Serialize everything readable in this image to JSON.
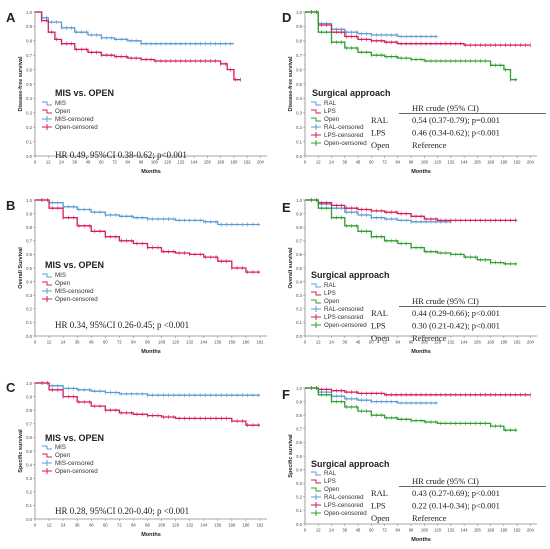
{
  "colors": {
    "MIS": "#5b9bd5",
    "Open": "#d81b5e",
    "RAL": "#5b9bd5",
    "LPS": "#d81b5e",
    "OpenGreen": "#2ca02c",
    "axis": "#888888",
    "text": "#222222"
  },
  "chart_data": [
    {
      "type": "line",
      "panel_label": "A",
      "title": "MIS vs. OPEN",
      "ylabel": "Disease-free survival",
      "xlabel": "Months",
      "xticks": [
        0,
        12,
        24,
        36,
        48,
        60,
        72,
        84,
        96,
        108,
        120,
        132,
        144,
        156,
        168,
        180,
        192,
        204
      ],
      "yticks": [
        "0.0",
        "0.1",
        "0.2",
        "0.3",
        "0.4",
        "0.5",
        "0.6",
        "0.7",
        "0.8",
        "0.9",
        "1.0"
      ],
      "xlim": [
        0,
        210
      ],
      "ylim": [
        0,
        1.0
      ],
      "legend": [
        "MIS",
        "Open",
        "MIS-censored",
        "Open-censored"
      ],
      "annotation": "HR 0.49, 95%CI 0.38-0.62; p<0.001",
      "series": [
        {
          "name": "MIS",
          "color_key": "MIS",
          "x": [
            0,
            6,
            12,
            24,
            36,
            48,
            60,
            72,
            84,
            96,
            120,
            150,
            180
          ],
          "y": [
            1.0,
            0.96,
            0.93,
            0.89,
            0.86,
            0.84,
            0.82,
            0.81,
            0.8,
            0.78,
            0.78,
            0.78,
            0.78
          ]
        },
        {
          "name": "Open",
          "color_key": "Open",
          "x": [
            0,
            6,
            12,
            18,
            24,
            36,
            48,
            60,
            72,
            84,
            96,
            108,
            120,
            132,
            144,
            156,
            168,
            174,
            180,
            186
          ],
          "y": [
            1.0,
            0.94,
            0.86,
            0.81,
            0.78,
            0.74,
            0.72,
            0.7,
            0.69,
            0.68,
            0.67,
            0.66,
            0.66,
            0.66,
            0.66,
            0.66,
            0.64,
            0.6,
            0.53,
            0.53
          ]
        }
      ]
    },
    {
      "type": "line",
      "panel_label": "B",
      "title": "MIS vs. OPEN",
      "ylabel": "Overall Survival",
      "xlabel": "Months",
      "xticks": [
        0,
        12,
        24,
        36,
        48,
        60,
        72,
        84,
        96,
        108,
        120,
        132,
        144,
        156,
        168,
        180,
        192
      ],
      "yticks": [
        "0.0",
        "0.1",
        "0.2",
        "0.3",
        "0.4",
        "0.5",
        "0.6",
        "0.7",
        "0.8",
        "0.9",
        "1.0"
      ],
      "xlim": [
        0,
        198
      ],
      "ylim": [
        0,
        1.0
      ],
      "legend": [
        "MIS",
        "Open",
        "MIS-censored",
        "Open-censored"
      ],
      "annotation": "HR 0.34, 95%CI 0.26-0.45; p <0.001",
      "series": [
        {
          "name": "MIS",
          "color_key": "MIS",
          "x": [
            0,
            12,
            24,
            36,
            48,
            60,
            72,
            84,
            96,
            108,
            120,
            132,
            144,
            156,
            168,
            180,
            192
          ],
          "y": [
            1.0,
            0.98,
            0.95,
            0.93,
            0.91,
            0.89,
            0.88,
            0.87,
            0.86,
            0.86,
            0.85,
            0.85,
            0.84,
            0.82,
            0.82,
            0.82,
            0.82
          ]
        },
        {
          "name": "Open",
          "color_key": "Open",
          "x": [
            0,
            12,
            24,
            36,
            48,
            60,
            72,
            84,
            96,
            108,
            120,
            132,
            144,
            156,
            168,
            180,
            192
          ],
          "y": [
            1.0,
            0.94,
            0.87,
            0.81,
            0.77,
            0.73,
            0.7,
            0.68,
            0.65,
            0.62,
            0.61,
            0.6,
            0.58,
            0.55,
            0.5,
            0.47,
            0.47
          ]
        }
      ]
    },
    {
      "type": "line",
      "panel_label": "C",
      "title": "MIS vs. OPEN",
      "ylabel": "Specific survival",
      "xlabel": "Months",
      "xticks": [
        0,
        12,
        24,
        36,
        48,
        60,
        72,
        84,
        96,
        108,
        120,
        132,
        144,
        156,
        168,
        180,
        192
      ],
      "yticks": [
        "0.0",
        "0.1",
        "0.2",
        "0.3",
        "0.4",
        "0.5",
        "0.6",
        "0.7",
        "0.8",
        "0.9",
        "1.0"
      ],
      "xlim": [
        0,
        198
      ],
      "ylim": [
        0,
        1.0
      ],
      "legend": [
        "MIS",
        "Open",
        "MIS-censored",
        "Open-censored"
      ],
      "annotation": "HR 0.28, 95%CI 0.20-0.40; p <0.001",
      "series": [
        {
          "name": "MIS",
          "color_key": "MIS",
          "x": [
            0,
            12,
            24,
            36,
            48,
            60,
            72,
            84,
            96,
            120,
            150,
            192
          ],
          "y": [
            1.0,
            0.98,
            0.96,
            0.95,
            0.94,
            0.93,
            0.92,
            0.92,
            0.91,
            0.91,
            0.91,
            0.91
          ]
        },
        {
          "name": "Open",
          "color_key": "Open",
          "x": [
            0,
            12,
            24,
            36,
            48,
            60,
            72,
            84,
            96,
            108,
            120,
            132,
            144,
            156,
            168,
            180,
            192
          ],
          "y": [
            1.0,
            0.95,
            0.9,
            0.86,
            0.83,
            0.8,
            0.78,
            0.77,
            0.76,
            0.75,
            0.74,
            0.74,
            0.74,
            0.74,
            0.72,
            0.69,
            0.69
          ]
        }
      ]
    },
    {
      "type": "line",
      "panel_label": "D",
      "title": "Surgical approach",
      "ylabel": "Disease-free survival",
      "xlabel": "Months",
      "xticks": [
        0,
        12,
        24,
        36,
        48,
        60,
        72,
        84,
        96,
        108,
        120,
        132,
        144,
        156,
        168,
        180,
        192,
        204
      ],
      "yticks": [
        "0.0",
        "0.1",
        "0.2",
        "0.3",
        "0.4",
        "0.5",
        "0.6",
        "0.7",
        "0.8",
        "0.9",
        "1.0"
      ],
      "xlim": [
        0,
        210
      ],
      "ylim": [
        0,
        1.0
      ],
      "legend": [
        "RAL",
        "LPS",
        "Open",
        "RAL-censored",
        "LPS-censored",
        "Open-censored"
      ],
      "hr_table": {
        "header": "HR crude (95% CI)",
        "rows": [
          {
            "label": "RAL",
            "value": "0.54 (0.37-0.79); p=0.001"
          },
          {
            "label": "LPS",
            "value": "0.46 (0.34-0.62); p<0.001"
          },
          {
            "label": "Open",
            "value": "Reference"
          }
        ]
      },
      "series": [
        {
          "name": "RAL",
          "color_key": "RAL",
          "x": [
            0,
            12,
            24,
            36,
            48,
            60,
            72,
            84,
            96,
            108,
            120
          ],
          "y": [
            1.0,
            0.92,
            0.88,
            0.86,
            0.85,
            0.84,
            0.84,
            0.83,
            0.83,
            0.83,
            0.83
          ]
        },
        {
          "name": "LPS",
          "color_key": "LPS",
          "x": [
            0,
            12,
            24,
            36,
            48,
            60,
            72,
            84,
            96,
            108,
            120,
            144,
            168,
            192,
            204
          ],
          "y": [
            1.0,
            0.91,
            0.86,
            0.83,
            0.81,
            0.8,
            0.79,
            0.78,
            0.78,
            0.78,
            0.78,
            0.77,
            0.77,
            0.77,
            0.77
          ]
        },
        {
          "name": "Open",
          "color_key": "OpenGreen",
          "x": [
            0,
            12,
            24,
            36,
            48,
            60,
            72,
            84,
            96,
            108,
            120,
            132,
            144,
            156,
            168,
            180,
            186,
            192
          ],
          "y": [
            1.0,
            0.86,
            0.79,
            0.75,
            0.72,
            0.7,
            0.69,
            0.68,
            0.67,
            0.66,
            0.66,
            0.66,
            0.66,
            0.66,
            0.63,
            0.6,
            0.53,
            0.53
          ]
        }
      ]
    },
    {
      "type": "line",
      "panel_label": "E",
      "title": "Surgical approach",
      "ylabel": "Overall survival",
      "xlabel": "Months",
      "xticks": [
        0,
        12,
        24,
        36,
        48,
        60,
        72,
        84,
        96,
        108,
        120,
        132,
        144,
        156,
        168,
        180,
        192,
        204
      ],
      "yticks": [
        "0.0",
        "0.1",
        "0.2",
        "0.3",
        "0.4",
        "0.5",
        "0.6",
        "0.7",
        "0.8",
        "0.9",
        "1.0"
      ],
      "xlim": [
        0,
        210
      ],
      "ylim": [
        0,
        1.0
      ],
      "legend": [
        "RAL",
        "LPS",
        "Open",
        "RAL-censored",
        "LPS-censored",
        "Open-censored"
      ],
      "hr_table": {
        "header": "HR crude (95% CI)",
        "rows": [
          {
            "label": "RAL",
            "value": "0.44 (0.29-0.66); p<0.001"
          },
          {
            "label": "LPS",
            "value": "0.30 (0.21-0.42); p<0.001"
          },
          {
            "label": "Open",
            "value": "Reference"
          }
        ]
      },
      "series": [
        {
          "name": "RAL",
          "color_key": "RAL",
          "x": [
            0,
            12,
            24,
            36,
            48,
            60,
            72,
            84,
            96,
            108,
            120,
            132
          ],
          "y": [
            1.0,
            0.97,
            0.94,
            0.91,
            0.89,
            0.87,
            0.86,
            0.85,
            0.84,
            0.84,
            0.84,
            0.84
          ]
        },
        {
          "name": "LPS",
          "color_key": "LPS",
          "x": [
            0,
            12,
            24,
            36,
            48,
            60,
            72,
            84,
            96,
            108,
            120,
            144,
            168,
            192
          ],
          "y": [
            1.0,
            0.98,
            0.96,
            0.94,
            0.93,
            0.92,
            0.91,
            0.9,
            0.88,
            0.86,
            0.85,
            0.85,
            0.85,
            0.85
          ]
        },
        {
          "name": "Open",
          "color_key": "OpenGreen",
          "x": [
            0,
            12,
            24,
            36,
            48,
            60,
            72,
            84,
            96,
            108,
            120,
            132,
            144,
            156,
            168,
            180,
            192
          ],
          "y": [
            1.0,
            0.94,
            0.87,
            0.81,
            0.77,
            0.73,
            0.7,
            0.68,
            0.65,
            0.62,
            0.61,
            0.6,
            0.58,
            0.56,
            0.54,
            0.53,
            0.53
          ]
        }
      ]
    },
    {
      "type": "line",
      "panel_label": "F",
      "title": "Surgical approach",
      "ylabel": "Specific survival",
      "xlabel": "Months",
      "xticks": [
        0,
        12,
        24,
        36,
        48,
        60,
        72,
        84,
        96,
        108,
        120,
        132,
        144,
        156,
        168,
        180,
        192,
        204
      ],
      "yticks": [
        "0.0",
        "0.1",
        "0.2",
        "0.3",
        "0.4",
        "0.5",
        "0.6",
        "0.7",
        "0.8",
        "0.9",
        "1.0"
      ],
      "xlim": [
        0,
        210
      ],
      "ylim": [
        0,
        1.0
      ],
      "legend": [
        "RAL",
        "LPS",
        "Open",
        "RAL-censored",
        "LPS-censored",
        "Open-censored"
      ],
      "hr_table": {
        "header": "HR crude (95% CI)",
        "rows": [
          {
            "label": "RAL",
            "value": "0.43 (0.27-0.69); p<0.001"
          },
          {
            "label": "LPS",
            "value": "0.22 (0.14-0.34); p<0.001"
          },
          {
            "label": "Open",
            "value": "Reference"
          }
        ]
      },
      "series": [
        {
          "name": "RAL",
          "color_key": "RAL",
          "x": [
            0,
            12,
            24,
            36,
            48,
            60,
            72,
            84,
            96,
            108,
            120
          ],
          "y": [
            1.0,
            0.97,
            0.94,
            0.92,
            0.91,
            0.9,
            0.9,
            0.89,
            0.89,
            0.89,
            0.89
          ]
        },
        {
          "name": "LPS",
          "color_key": "LPS",
          "x": [
            0,
            12,
            24,
            36,
            48,
            60,
            72,
            84,
            96,
            108,
            120,
            144,
            168,
            192,
            204
          ],
          "y": [
            1.0,
            0.99,
            0.98,
            0.97,
            0.96,
            0.96,
            0.95,
            0.95,
            0.95,
            0.95,
            0.95,
            0.95,
            0.95,
            0.95,
            0.95
          ]
        },
        {
          "name": "Open",
          "color_key": "OpenGreen",
          "x": [
            0,
            12,
            24,
            36,
            48,
            60,
            72,
            84,
            96,
            108,
            120,
            132,
            144,
            156,
            168,
            180,
            192
          ],
          "y": [
            1.0,
            0.95,
            0.9,
            0.86,
            0.83,
            0.8,
            0.78,
            0.77,
            0.76,
            0.75,
            0.74,
            0.74,
            0.74,
            0.74,
            0.72,
            0.69,
            0.69
          ]
        }
      ]
    }
  ]
}
